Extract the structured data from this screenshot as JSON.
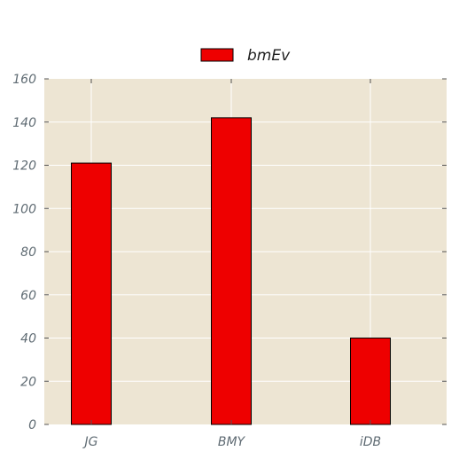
{
  "chart_data": {
    "type": "bar",
    "categories": [
      "JG",
      "BMY",
      "iDB"
    ],
    "series": [
      {
        "name": "bmEv",
        "values": [
          121,
          142,
          40
        ],
        "color": "#ee0000"
      }
    ],
    "title": "",
    "xlabel": "",
    "ylabel": "",
    "ylim": [
      0,
      160
    ],
    "yticks": [
      "0",
      "20",
      "40",
      "60",
      "80",
      "100",
      "120",
      "140",
      "160"
    ],
    "grid": true,
    "legend_position": "top-center",
    "plot_background": "#ede5d3",
    "grid_color": "#ffffff"
  }
}
